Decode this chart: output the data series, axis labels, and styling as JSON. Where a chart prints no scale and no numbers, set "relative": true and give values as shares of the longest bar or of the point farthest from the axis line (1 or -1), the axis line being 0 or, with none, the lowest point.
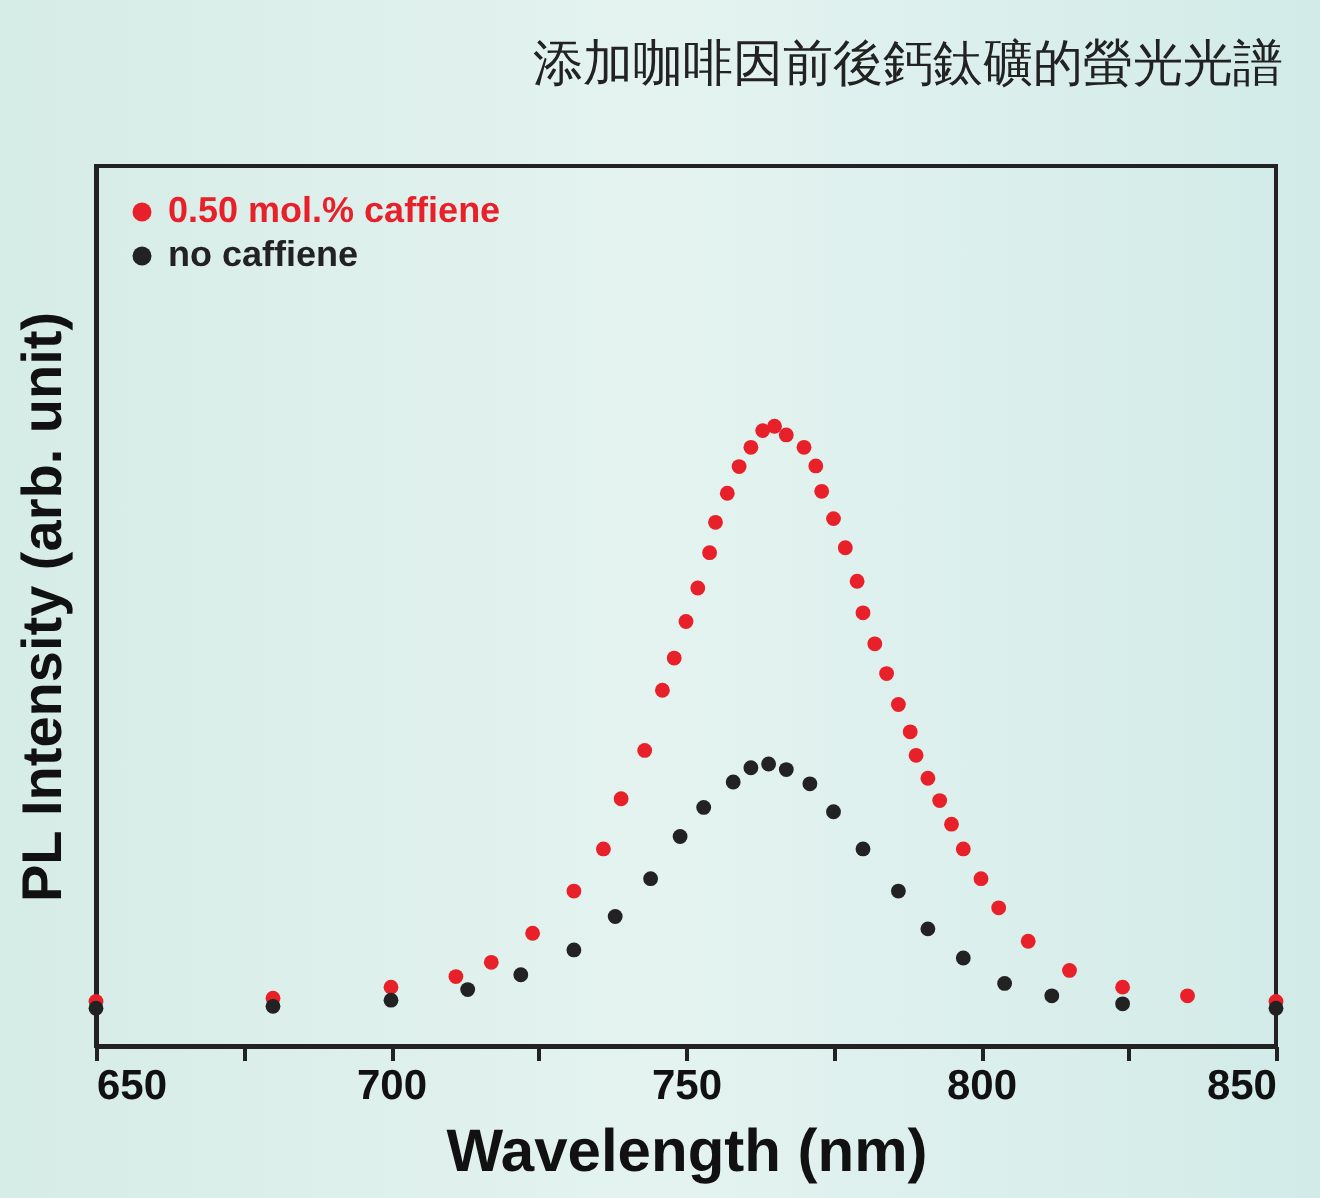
{
  "chart_data": {
    "type": "scatter",
    "title": "添加咖啡因前後鈣鈦礦的螢光光譜",
    "xlabel": "Wavelength (nm)",
    "ylabel": "PL Intensity (arb. unit)",
    "relative": true,
    "xlim": [
      650,
      850
    ],
    "xticks": [
      650,
      {
        "value": 675,
        "label": null
      },
      700,
      {
        "value": 725,
        "label": null
      },
      750,
      {
        "value": 775,
        "label": null
      },
      800,
      {
        "value": 825,
        "label": null
      },
      850
    ],
    "legend": "top left",
    "marker": "circle",
    "series": [
      {
        "name": "0.50 mol.% caffiene",
        "color": "#e8202a",
        "x": [
          650,
          680,
          700,
          711,
          717,
          724,
          731,
          736,
          739,
          743,
          746,
          748,
          750,
          752,
          754,
          755,
          757,
          759,
          761,
          763,
          765,
          767,
          770,
          772,
          773,
          775,
          777,
          779,
          780,
          782,
          784,
          786,
          788,
          789,
          791,
          793,
          795,
          797,
          800,
          803,
          808,
          815,
          824,
          835,
          850
        ],
        "values": [
          0.072,
          0.077,
          0.095,
          0.112,
          0.135,
          0.182,
          0.25,
          0.318,
          0.399,
          0.477,
          0.574,
          0.626,
          0.685,
          0.739,
          0.796,
          0.845,
          0.892,
          0.935,
          0.966,
          0.993,
          1.0,
          0.986,
          0.966,
          0.936,
          0.895,
          0.851,
          0.804,
          0.75,
          0.699,
          0.649,
          0.601,
          0.551,
          0.507,
          0.469,
          0.432,
          0.396,
          0.358,
          0.318,
          0.27,
          0.223,
          0.169,
          0.122,
          0.095,
          0.081,
          0.072
        ]
      },
      {
        "name": "no caffiene",
        "color": "#222222",
        "x": [
          650,
          680,
          700,
          713,
          722,
          731,
          738,
          744,
          749,
          753,
          758,
          761,
          764,
          767,
          771,
          775,
          780,
          786,
          791,
          797,
          804,
          812,
          824,
          850
        ],
        "values": [
          0.061,
          0.064,
          0.074,
          0.091,
          0.115,
          0.155,
          0.209,
          0.27,
          0.338,
          0.385,
          0.426,
          0.449,
          0.455,
          0.446,
          0.423,
          0.378,
          0.318,
          0.25,
          0.189,
          0.142,
          0.101,
          0.081,
          0.068,
          0.061
        ]
      }
    ]
  }
}
